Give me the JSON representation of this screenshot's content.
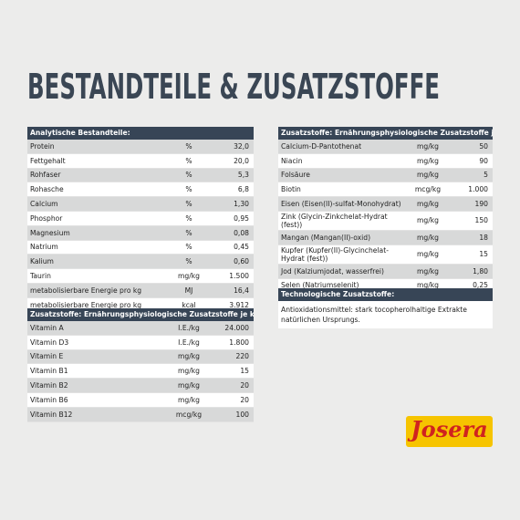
{
  "title": "BESTANDTEILE & ZUSATZSTOFFE",
  "analytical_table": {
    "header": "Analytische Bestandteile:",
    "rows": [
      [
        "Protein",
        "%",
        "32,0"
      ],
      [
        "Fettgehalt",
        "%",
        "20,0"
      ],
      [
        "Rohfaser",
        "%",
        "5,3"
      ],
      [
        "Rohasche",
        "%",
        "6,8"
      ],
      [
        "Calcium",
        "%",
        "1,30"
      ],
      [
        "Phosphor",
        "%",
        "0,95"
      ],
      [
        "Magnesium",
        "%",
        "0,08"
      ],
      [
        "Natrium",
        "%",
        "0,45"
      ],
      [
        "Kalium",
        "%",
        "0,60"
      ],
      [
        "Taurin",
        "mg/kg",
        "1.500"
      ],
      [
        "metabolisierbare Energie pro kg",
        "MJ",
        "16,4"
      ],
      [
        "metabolisierbare Energie pro kg",
        "kcal",
        "3.912"
      ]
    ]
  },
  "vitamins_table": {
    "header": "Zusatzstoffe: Ernährungsphysiologische Zusatzstoffe je kg:",
    "rows": [
      [
        "Vitamin A",
        "I.E./kg",
        "24.000"
      ],
      [
        "Vitamin D3",
        "I.E./kg",
        "1.800"
      ],
      [
        "Vitamin E",
        "mg/kg",
        "220"
      ],
      [
        "Vitamin B1",
        "mg/kg",
        "15"
      ],
      [
        "Vitamin B2",
        "mg/kg",
        "20"
      ],
      [
        "Vitamin B6",
        "mg/kg",
        "20"
      ],
      [
        "Vitamin B12",
        "mcg/kg",
        "100"
      ]
    ]
  },
  "minerals_table": {
    "header": "Zusatzstoffe: Ernährungsphysiologische Zusatzstoffe je kg:",
    "rows": [
      [
        "Calcium-D-Pantothenat",
        "mg/kg",
        "50"
      ],
      [
        "Niacin",
        "mg/kg",
        "90"
      ],
      [
        "Folsäure",
        "mg/kg",
        "5"
      ],
      [
        "Biotin",
        "mcg/kg",
        "1.000"
      ],
      [
        "Eisen (Eisen(II)-sulfat-Monohydrat)",
        "mg/kg",
        "190"
      ],
      [
        "Zink (Glycin-Zinkchelat-Hydrat (fest))",
        "mg/kg",
        "150"
      ],
      [
        "Mangan (Mangan(II)-oxid)",
        "mg/kg",
        "18"
      ],
      [
        "Kupfer (Kupfer(II)-Glycinchelat-Hydrat (fest))",
        "mg/kg",
        "15"
      ],
      [
        "Jod (Kalziumjodat, wasserfrei)",
        "mg/kg",
        "1,80"
      ],
      [
        "Selen (Natriumselenit)",
        "mg/kg",
        "0,25"
      ]
    ]
  },
  "technological_table": {
    "header": "Technologische Zusatzstoffe:",
    "text": "Antioxidationsmittel: stark tocopherolhaltige Extrakte natürlichen Ursprungs."
  },
  "logo": "Josera"
}
